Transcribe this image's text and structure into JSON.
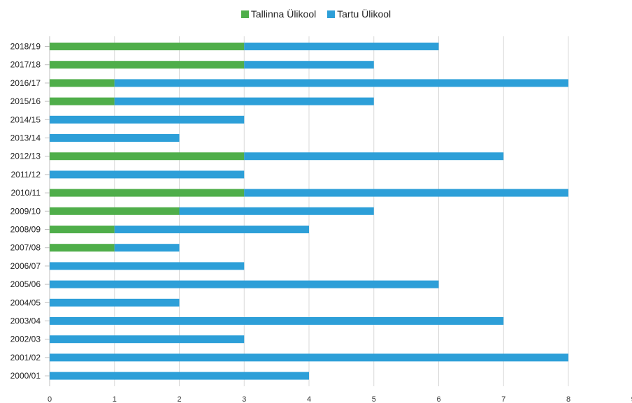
{
  "chart_data": {
    "type": "bar",
    "orientation": "horizontal",
    "stacked": true,
    "categories": [
      "2000/01",
      "2001/02",
      "2002/03",
      "2003/04",
      "2004/05",
      "2005/06",
      "2006/07",
      "2007/08",
      "2008/09",
      "2009/10",
      "2010/11",
      "2011/12",
      "2012/13",
      "2013/14",
      "2014/15",
      "2015/16",
      "2016/17",
      "2017/18",
      "2018/19"
    ],
    "series": [
      {
        "name": "Tallinna Ülikool",
        "color": "#4fae4a",
        "values": [
          0,
          0,
          0,
          0,
          0,
          0,
          0,
          1,
          1,
          2,
          3,
          0,
          3,
          0,
          0,
          1,
          1,
          3,
          3
        ]
      },
      {
        "name": "Tartu Ülikool",
        "color": "#2d9fd8",
        "values": [
          4,
          8,
          3,
          7,
          2,
          6,
          3,
          1,
          3,
          3,
          5,
          3,
          4,
          2,
          3,
          4,
          7,
          2,
          3
        ]
      }
    ],
    "xlim": [
      0,
      9
    ],
    "xticks": [
      "0",
      "1",
      "2",
      "3",
      "4",
      "5",
      "6",
      "7",
      "8",
      "9"
    ],
    "grid": true,
    "legend_position": "top-center"
  }
}
